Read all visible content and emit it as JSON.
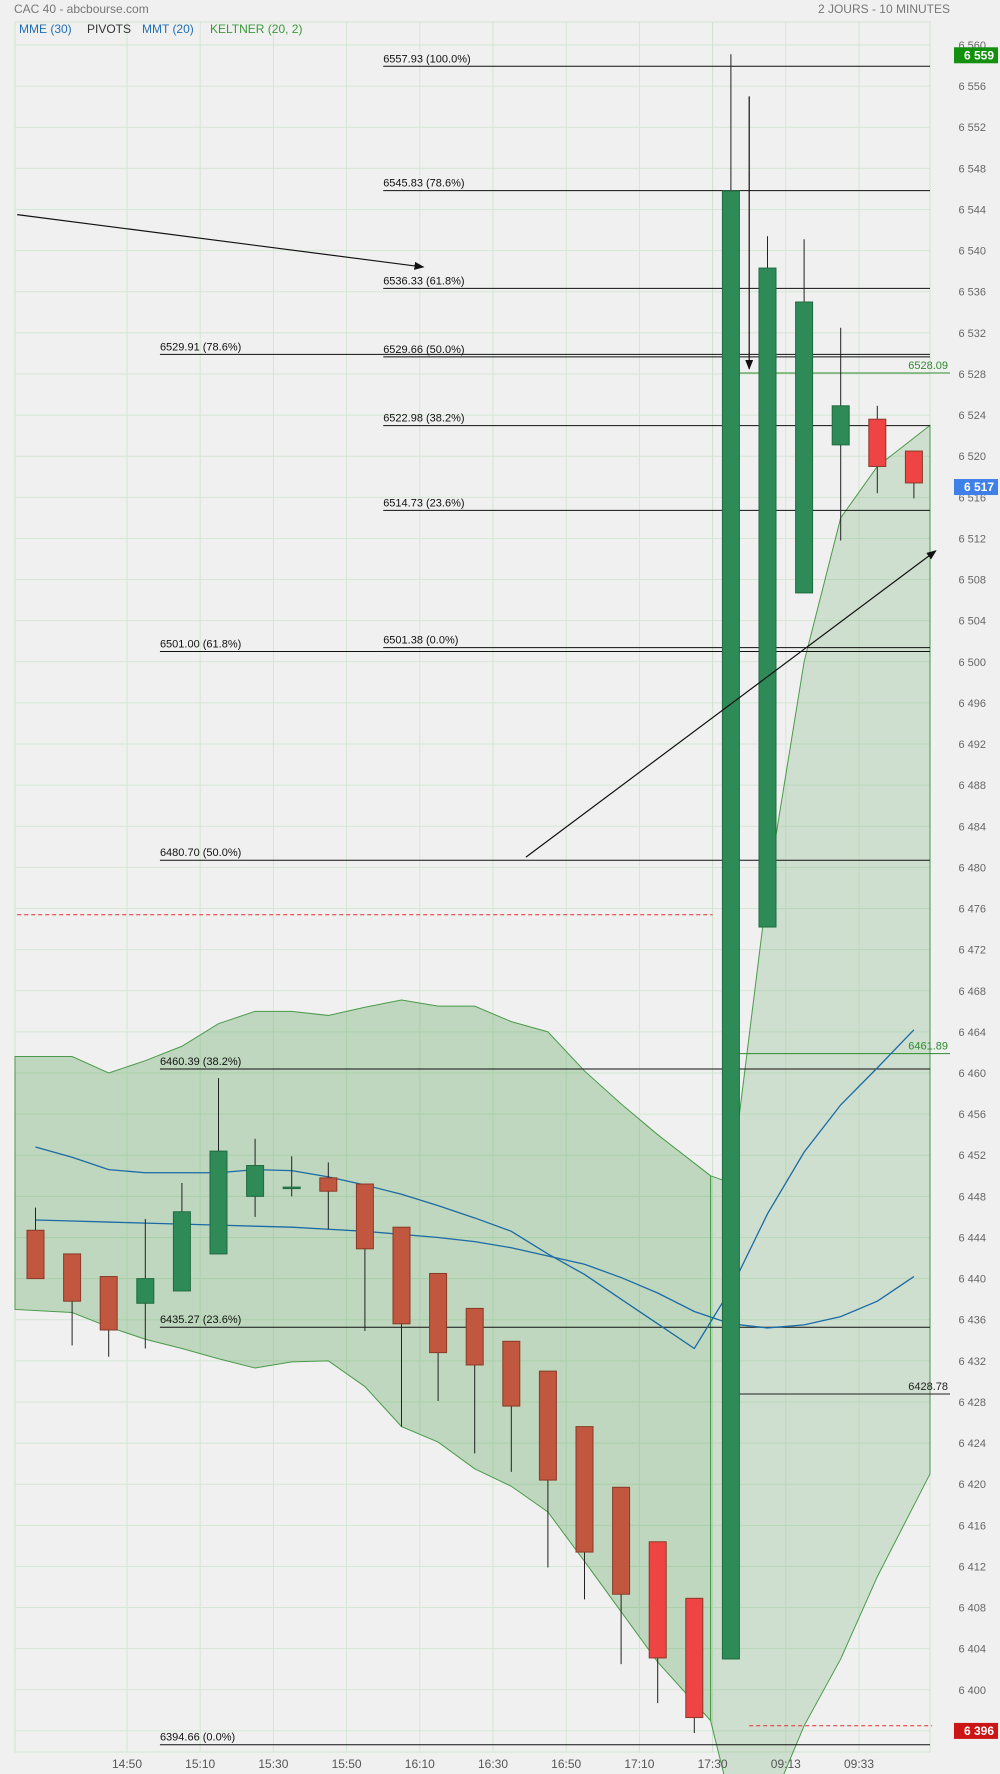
{
  "header": {
    "title": "CAC 40 - abcbourse.com",
    "period": "2 JOURS - 10 MINUTES"
  },
  "legend": [
    {
      "label": "MME (30)",
      "color": "#1f6fb5"
    },
    {
      "label": "PIVOTS",
      "color": "#333333"
    },
    {
      "label": "MMT (20)",
      "color": "#1f6fb5"
    },
    {
      "label": "KELTNER (20, 2)",
      "color": "#3a9a3a"
    }
  ],
  "chart_data": {
    "type": "candlestick",
    "ylim": [
      6392,
      6562
    ],
    "y_ticks": [
      6560,
      6556,
      6552,
      6548,
      6544,
      6540,
      6536,
      6532,
      6528,
      6524,
      6520,
      6516,
      6512,
      6508,
      6504,
      6500,
      6496,
      6492,
      6488,
      6484,
      6480,
      6476,
      6472,
      6468,
      6464,
      6460,
      6456,
      6452,
      6448,
      6444,
      6440,
      6436,
      6432,
      6428,
      6424,
      6420,
      6416,
      6412,
      6408,
      6404,
      6400,
      6396
    ],
    "y_tick_labels": [
      "6 560",
      "6 556",
      "6 552",
      "6 548",
      "6 544",
      "6 540",
      "6 536",
      "6 532",
      "6 528",
      "6 524",
      "6 520",
      "6 516",
      "6 512",
      "6 508",
      "6 504",
      "6 500",
      "6 496",
      "6 492",
      "6 488",
      "6 484",
      "6 480",
      "6 476",
      "6 472",
      "6 468",
      "6 464",
      "6 460",
      "6 456",
      "6 452",
      "6 448",
      "6 444",
      "6 440",
      "6 436",
      "6 432",
      "6 428",
      "6 424",
      "6 420",
      "6 416",
      "6 412",
      "6 408",
      "6 404",
      "6 400",
      "6 396"
    ],
    "x_ticks": [
      {
        "i": 2.5,
        "label": "14:50"
      },
      {
        "i": 4.5,
        "label": "15:10"
      },
      {
        "i": 6.5,
        "label": "15:30"
      },
      {
        "i": 8.5,
        "label": "15:50"
      },
      {
        "i": 10.5,
        "label": "16:10"
      },
      {
        "i": 12.5,
        "label": "16:30"
      },
      {
        "i": 14.5,
        "label": "16:50"
      },
      {
        "i": 16.5,
        "label": "17:10"
      },
      {
        "i": 18.5,
        "label": "17:30"
      },
      {
        "i": 20.5,
        "label": "09:13"
      },
      {
        "i": 22.5,
        "label": "09:33"
      }
    ],
    "session_break_index": 18.5,
    "candles": [
      {
        "o": 6444.7,
        "h": 6446.9,
        "l": 6440.0,
        "c": 6440.0
      },
      {
        "o": 6442.4,
        "h": 6442.4,
        "l": 6433.5,
        "c": 6437.8
      },
      {
        "o": 6440.2,
        "h": 6440.2,
        "l": 6432.4,
        "c": 6435.0
      },
      {
        "o": 6437.6,
        "h": 6445.8,
        "l": 6433.2,
        "c": 6440.0
      },
      {
        "o": 6438.8,
        "h": 6449.3,
        "l": 6438.8,
        "c": 6446.5
      },
      {
        "o": 6442.4,
        "h": 6459.5,
        "l": 6442.4,
        "c": 6452.4
      },
      {
        "o": 6448.0,
        "h": 6453.6,
        "l": 6446.0,
        "c": 6451.0
      },
      {
        "o": 6448.9,
        "h": 6451.9,
        "l": 6448.0,
        "c": 6448.9
      },
      {
        "o": 6449.8,
        "h": 6451.3,
        "l": 6444.8,
        "c": 6448.5
      },
      {
        "o": 6449.2,
        "h": 6449.2,
        "l": 6434.9,
        "c": 6442.9
      },
      {
        "o": 6445.0,
        "h": 6445.0,
        "l": 6425.6,
        "c": 6435.6
      },
      {
        "o": 6440.5,
        "h": 6440.5,
        "l": 6428.1,
        "c": 6432.8
      },
      {
        "o": 6437.1,
        "h": 6437.1,
        "l": 6423.0,
        "c": 6431.6
      },
      {
        "o": 6433.9,
        "h": 6433.9,
        "l": 6421.2,
        "c": 6427.6
      },
      {
        "o": 6431.0,
        "h": 6431.0,
        "l": 6411.9,
        "c": 6420.4
      },
      {
        "o": 6425.6,
        "h": 6425.6,
        "l": 6408.8,
        "c": 6413.4
      },
      {
        "o": 6419.7,
        "h": 6419.7,
        "l": 6402.5,
        "c": 6409.3
      },
      {
        "o": 6414.4,
        "h": 6414.4,
        "l": 6398.7,
        "c": 6403.1
      },
      {
        "o": 6408.9,
        "h": 6408.9,
        "l": 6395.8,
        "c": 6397.3
      },
      {
        "o": 6403.0,
        "h": 6559.1,
        "l": 6403.0,
        "c": 6545.8
      },
      {
        "o": 6474.2,
        "h": 6541.4,
        "l": 6474.2,
        "c": 6538.3
      },
      {
        "o": 6506.7,
        "h": 6541.1,
        "l": 6506.7,
        "c": 6535.0
      },
      {
        "o": 6521.1,
        "h": 6532.5,
        "l": 6511.8,
        "c": 6524.9
      },
      {
        "o": 6523.6,
        "h": 6524.9,
        "l": 6516.4,
        "c": 6519.0
      },
      {
        "o": 6520.5,
        "h": 6520.5,
        "l": 6515.9,
        "c": 6517.4
      }
    ],
    "keltner_upper": [
      6461.6,
      6461.6,
      6460.0,
      6461.2,
      6462.6,
      6464.8,
      6466.0,
      6466.0,
      6465.6,
      6466.4,
      6467.1,
      6466.5,
      6466.5,
      6465.0,
      6464.0,
      6460.2,
      6457.0,
      6454.0,
      6450.0,
      6449.3,
      6478.0,
      6500.0,
      6514.0,
      6519.0,
      6523.0
    ],
    "keltner_lower": [
      6437.0,
      6436.7,
      6435.3,
      6434.1,
      6433.2,
      6432.2,
      6431.3,
      6431.9,
      6432.0,
      6429.5,
      6425.6,
      6424.1,
      6421.5,
      6419.8,
      6417.3,
      6412.5,
      6407.6,
      6402.7,
      6397.0,
      6389.0,
      6388.0,
      6396.5,
      6403.0,
      6411.0,
      6421.0
    ],
    "ema30": [
      6445.7,
      6445.6,
      6445.5,
      6445.4,
      6445.3,
      6445.2,
      6445.1,
      6445.0,
      6444.8,
      6444.6,
      6444.3,
      6444.0,
      6443.6,
      6443.0,
      6442.2,
      6441.4,
      6440.1,
      6438.6,
      6436.8,
      6435.6,
      6435.2,
      6435.5,
      6436.3,
      6437.8,
      6440.2
    ],
    "sma20": [
      6452.8,
      6451.8,
      6450.6,
      6450.3,
      6450.3,
      6450.3,
      6450.6,
      6450.5,
      6449.9,
      6449.1,
      6448.2,
      6447.1,
      6445.9,
      6444.6,
      6442.4,
      6440.4,
      6438.0,
      6435.6,
      6433.2,
      6439.0,
      6446.3,
      6452.3,
      6456.9,
      6460.5,
      6464.2
    ],
    "fib_levels": [
      {
        "value": 6557.93,
        "label": "6557.93  (100.0%)",
        "from": 9.5
      },
      {
        "value": 6545.83,
        "label": "6545.83  (78.6%)",
        "from": 9.5
      },
      {
        "value": 6536.33,
        "label": "6536.33  (61.8%)",
        "from": 9.5
      },
      {
        "value": 6529.66,
        "label": "6529.66  (50.0%)",
        "from": 9.5
      },
      {
        "value": 6522.98,
        "label": "6522.98  (38.2%)",
        "from": 9.5
      },
      {
        "value": 6514.73,
        "label": "6514.73  (23.6%)",
        "from": 9.5
      },
      {
        "value": 6501.38,
        "label": "6501.38  (0.0%)",
        "from": 9.5
      },
      {
        "value": 6529.91,
        "label": "6529.91  (78.6%)",
        "from": 3.4
      },
      {
        "value": 6501.0,
        "label": "6501.00  (61.8%)",
        "from": 3.4
      },
      {
        "value": 6480.7,
        "label": "6480.70  (50.0%)",
        "from": 3.4
      },
      {
        "value": 6460.39,
        "label": "6460.39  (38.2%)",
        "from": 3.4
      },
      {
        "value": 6435.27,
        "label": "6435.27  (23.6%)",
        "from": 3.4
      },
      {
        "value": 6394.66,
        "label": "6394.66  (0.0%)",
        "from": 3.4
      }
    ],
    "pivot_labels": [
      {
        "value": 6528.09,
        "label": "6528.09",
        "color": "#2e8b2e"
      },
      {
        "value": 6461.89,
        "label": "6461.89",
        "color": "#2e8b2e"
      },
      {
        "value": 6428.78,
        "label": "6428.78",
        "color": "#222222"
      }
    ],
    "pivot_lines": [
      {
        "value": 6528.09,
        "from": 19.5,
        "color": "#2e8b2e"
      },
      {
        "value": 6461.89,
        "from": 19.5,
        "color": "#2e8b2e"
      },
      {
        "value": 6428.78,
        "from": 19.5,
        "color": "#222222"
      }
    ],
    "dashed_levels": [
      {
        "value": 6475.4,
        "from": -0.5,
        "to": 18.5,
        "color": "#e03030"
      },
      {
        "value": 6396.5,
        "from": 19.5,
        "to": 24.5,
        "color": "#e03030"
      }
    ],
    "arrows": [
      {
        "x1": -0.5,
        "y1": 6543.5,
        "x2": 10.6,
        "y2": 6538.4
      },
      {
        "x1": 13.4,
        "y1": 6481.0,
        "x2": 24.6,
        "y2": 6510.8
      },
      {
        "x1": 19.5,
        "y1": 6555.0,
        "x2": 19.5,
        "y2": 6528.5
      }
    ],
    "price_tags": [
      {
        "value": 6559,
        "label": "6 559",
        "bg": "#14900f"
      },
      {
        "value": 6517,
        "label": "6 517",
        "bg": "#3f7fe8"
      },
      {
        "value": 6396,
        "label": "6 396",
        "bg": "#cc1616"
      }
    ]
  }
}
